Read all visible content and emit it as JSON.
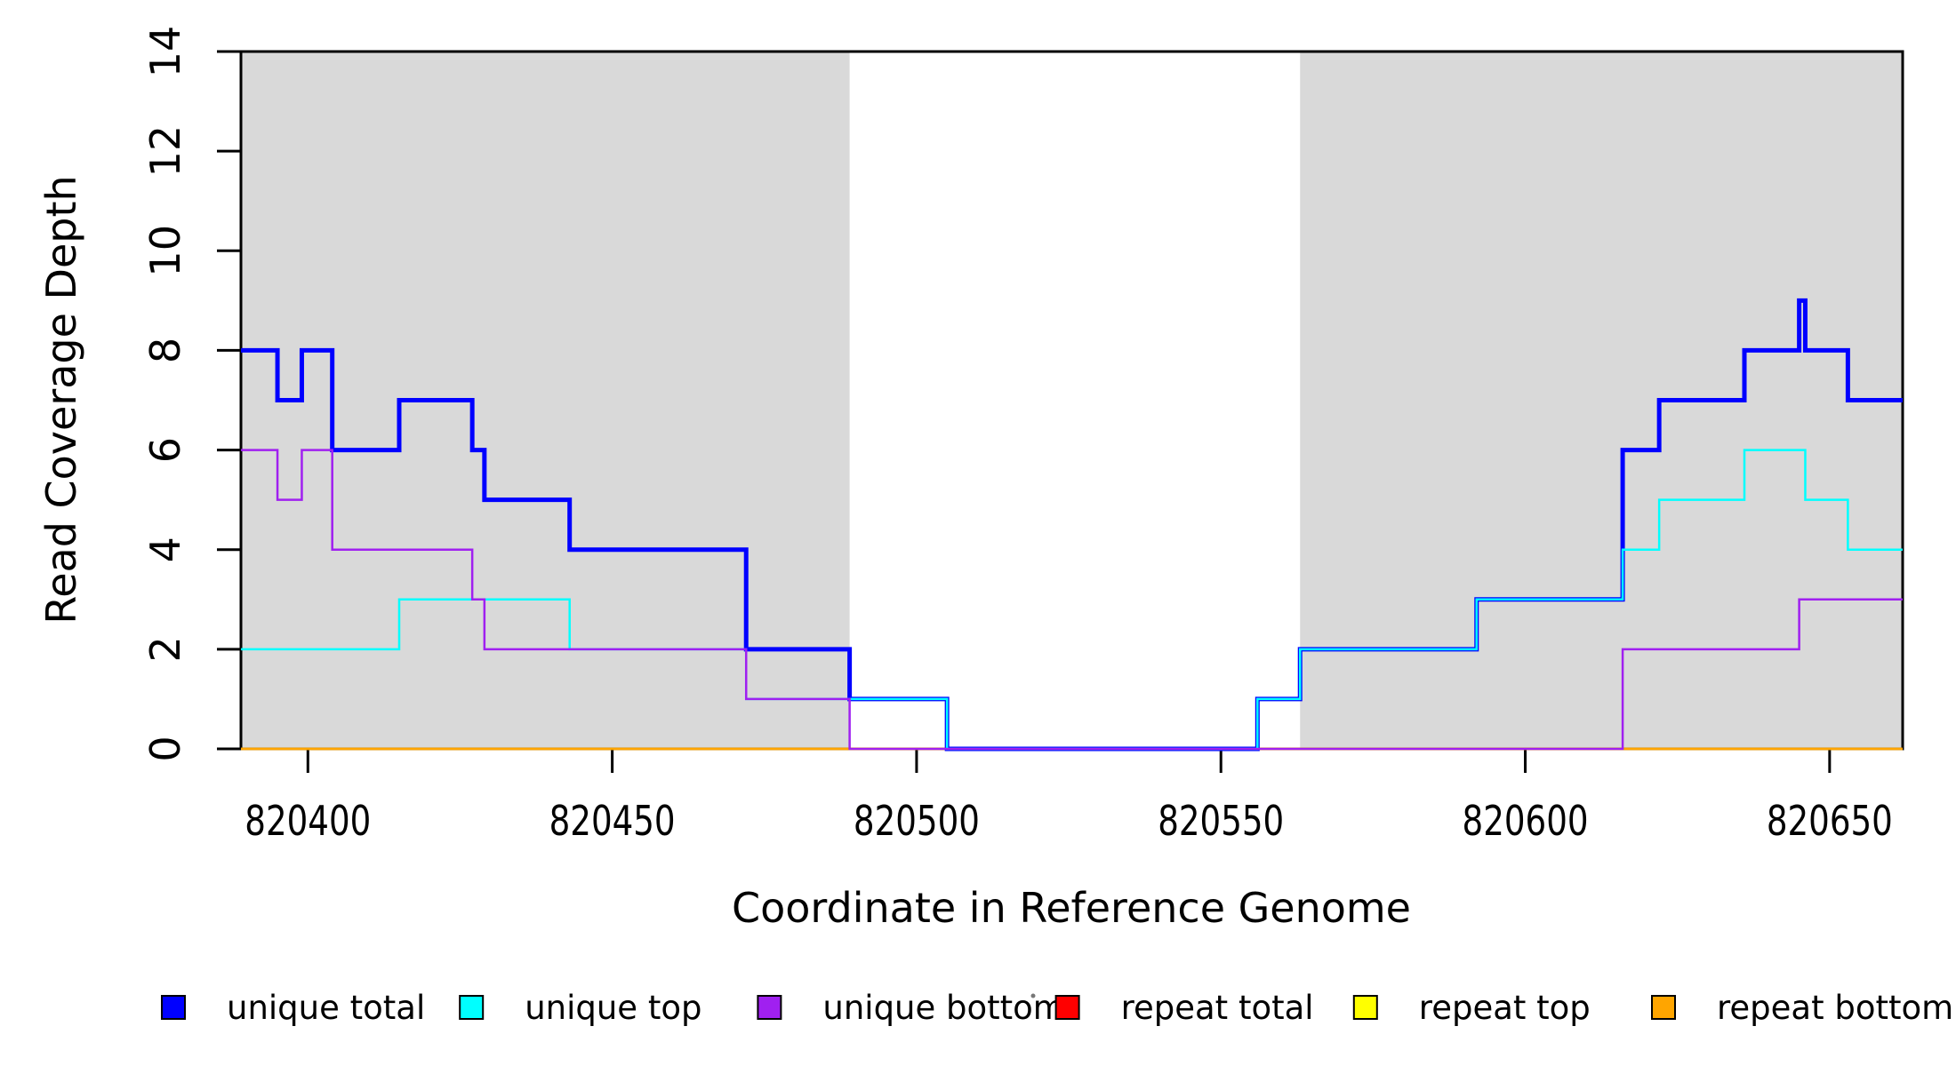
{
  "chart_data": {
    "type": "line",
    "subtype": "step",
    "title": "",
    "xlabel": "Coordinate in Reference Genome",
    "ylabel": "Read Coverage Depth",
    "xlim": [
      820389,
      820662
    ],
    "ylim": [
      0,
      14
    ],
    "x_ticks": [
      "820400",
      "820450",
      "820500",
      "820550",
      "820600",
      "820650"
    ],
    "x_tick_values": [
      820400,
      820450,
      820500,
      820550,
      820600,
      820650
    ],
    "y_ticks": [
      "0",
      "2",
      "4",
      "6",
      "8",
      "10",
      "12",
      "14"
    ],
    "y_tick_values": [
      0,
      2,
      4,
      6,
      8,
      10,
      12,
      14
    ],
    "grid": false,
    "legend_position": "bottom",
    "background_color": "#ffffff",
    "shade_color": "#d9d9d9",
    "shaded_x_ranges": [
      {
        "from": 820389,
        "to": 820489
      },
      {
        "from": 820563,
        "to": 820662
      }
    ],
    "series": [
      {
        "name": "unique total",
        "color": "#0000ff",
        "line_width": 5,
        "steps": [
          [
            820389,
            8
          ],
          [
            820395,
            7
          ],
          [
            820399,
            8
          ],
          [
            820404,
            6
          ],
          [
            820415,
            7
          ],
          [
            820427,
            6
          ],
          [
            820429,
            5
          ],
          [
            820443,
            4
          ],
          [
            820472,
            2
          ],
          [
            820489,
            1
          ],
          [
            820505,
            0
          ],
          [
            820556,
            1
          ],
          [
            820563,
            2
          ],
          [
            820592,
            3
          ],
          [
            820616,
            6
          ],
          [
            820622,
            7
          ],
          [
            820636,
            8
          ],
          [
            820645,
            9
          ],
          [
            820646,
            8
          ],
          [
            820653,
            7
          ]
        ]
      },
      {
        "name": "unique top",
        "color": "#00ffff",
        "line_width": 2.5,
        "steps": [
          [
            820389,
            2
          ],
          [
            820415,
            3
          ],
          [
            820443,
            2
          ],
          [
            820472,
            1
          ],
          [
            820505,
            0
          ],
          [
            820556,
            1
          ],
          [
            820563,
            2
          ],
          [
            820592,
            3
          ],
          [
            820616,
            4
          ],
          [
            820622,
            5
          ],
          [
            820636,
            6
          ],
          [
            820646,
            5
          ],
          [
            820653,
            4
          ]
        ]
      },
      {
        "name": "unique bottom",
        "color": "#a020f0",
        "line_width": 2.5,
        "steps": [
          [
            820389,
            6
          ],
          [
            820395,
            5
          ],
          [
            820399,
            6
          ],
          [
            820404,
            4
          ],
          [
            820427,
            3
          ],
          [
            820429,
            2
          ],
          [
            820472,
            1
          ],
          [
            820489,
            0
          ],
          [
            820616,
            2
          ],
          [
            820645,
            3
          ]
        ]
      },
      {
        "name": "repeat total",
        "color": "#ff0000",
        "line_width": 2.5,
        "steps": [
          [
            820389,
            0
          ]
        ]
      },
      {
        "name": "repeat top",
        "color": "#ffff00",
        "line_width": 2.5,
        "steps": [
          [
            820389,
            0
          ]
        ]
      },
      {
        "name": "repeat bottom",
        "color": "#ffa500",
        "line_width": 2.5,
        "steps": [
          [
            820389,
            0
          ]
        ]
      }
    ],
    "draw_order": [
      "repeat total",
      "repeat top",
      "repeat bottom",
      "unique total",
      "unique top",
      "unique bottom"
    ],
    "legend": [
      {
        "label": "unique total",
        "color": "#0000ff"
      },
      {
        "label": "unique top",
        "color": "#00ffff"
      },
      {
        "label": "unique bottom",
        "color": "#a020f0"
      },
      {
        "label": "repeat total",
        "color": "#ff0000"
      },
      {
        "label": "repeat top",
        "color": "#ffff00"
      },
      {
        "label": "repeat bottom",
        "color": "#ffa500"
      }
    ]
  }
}
